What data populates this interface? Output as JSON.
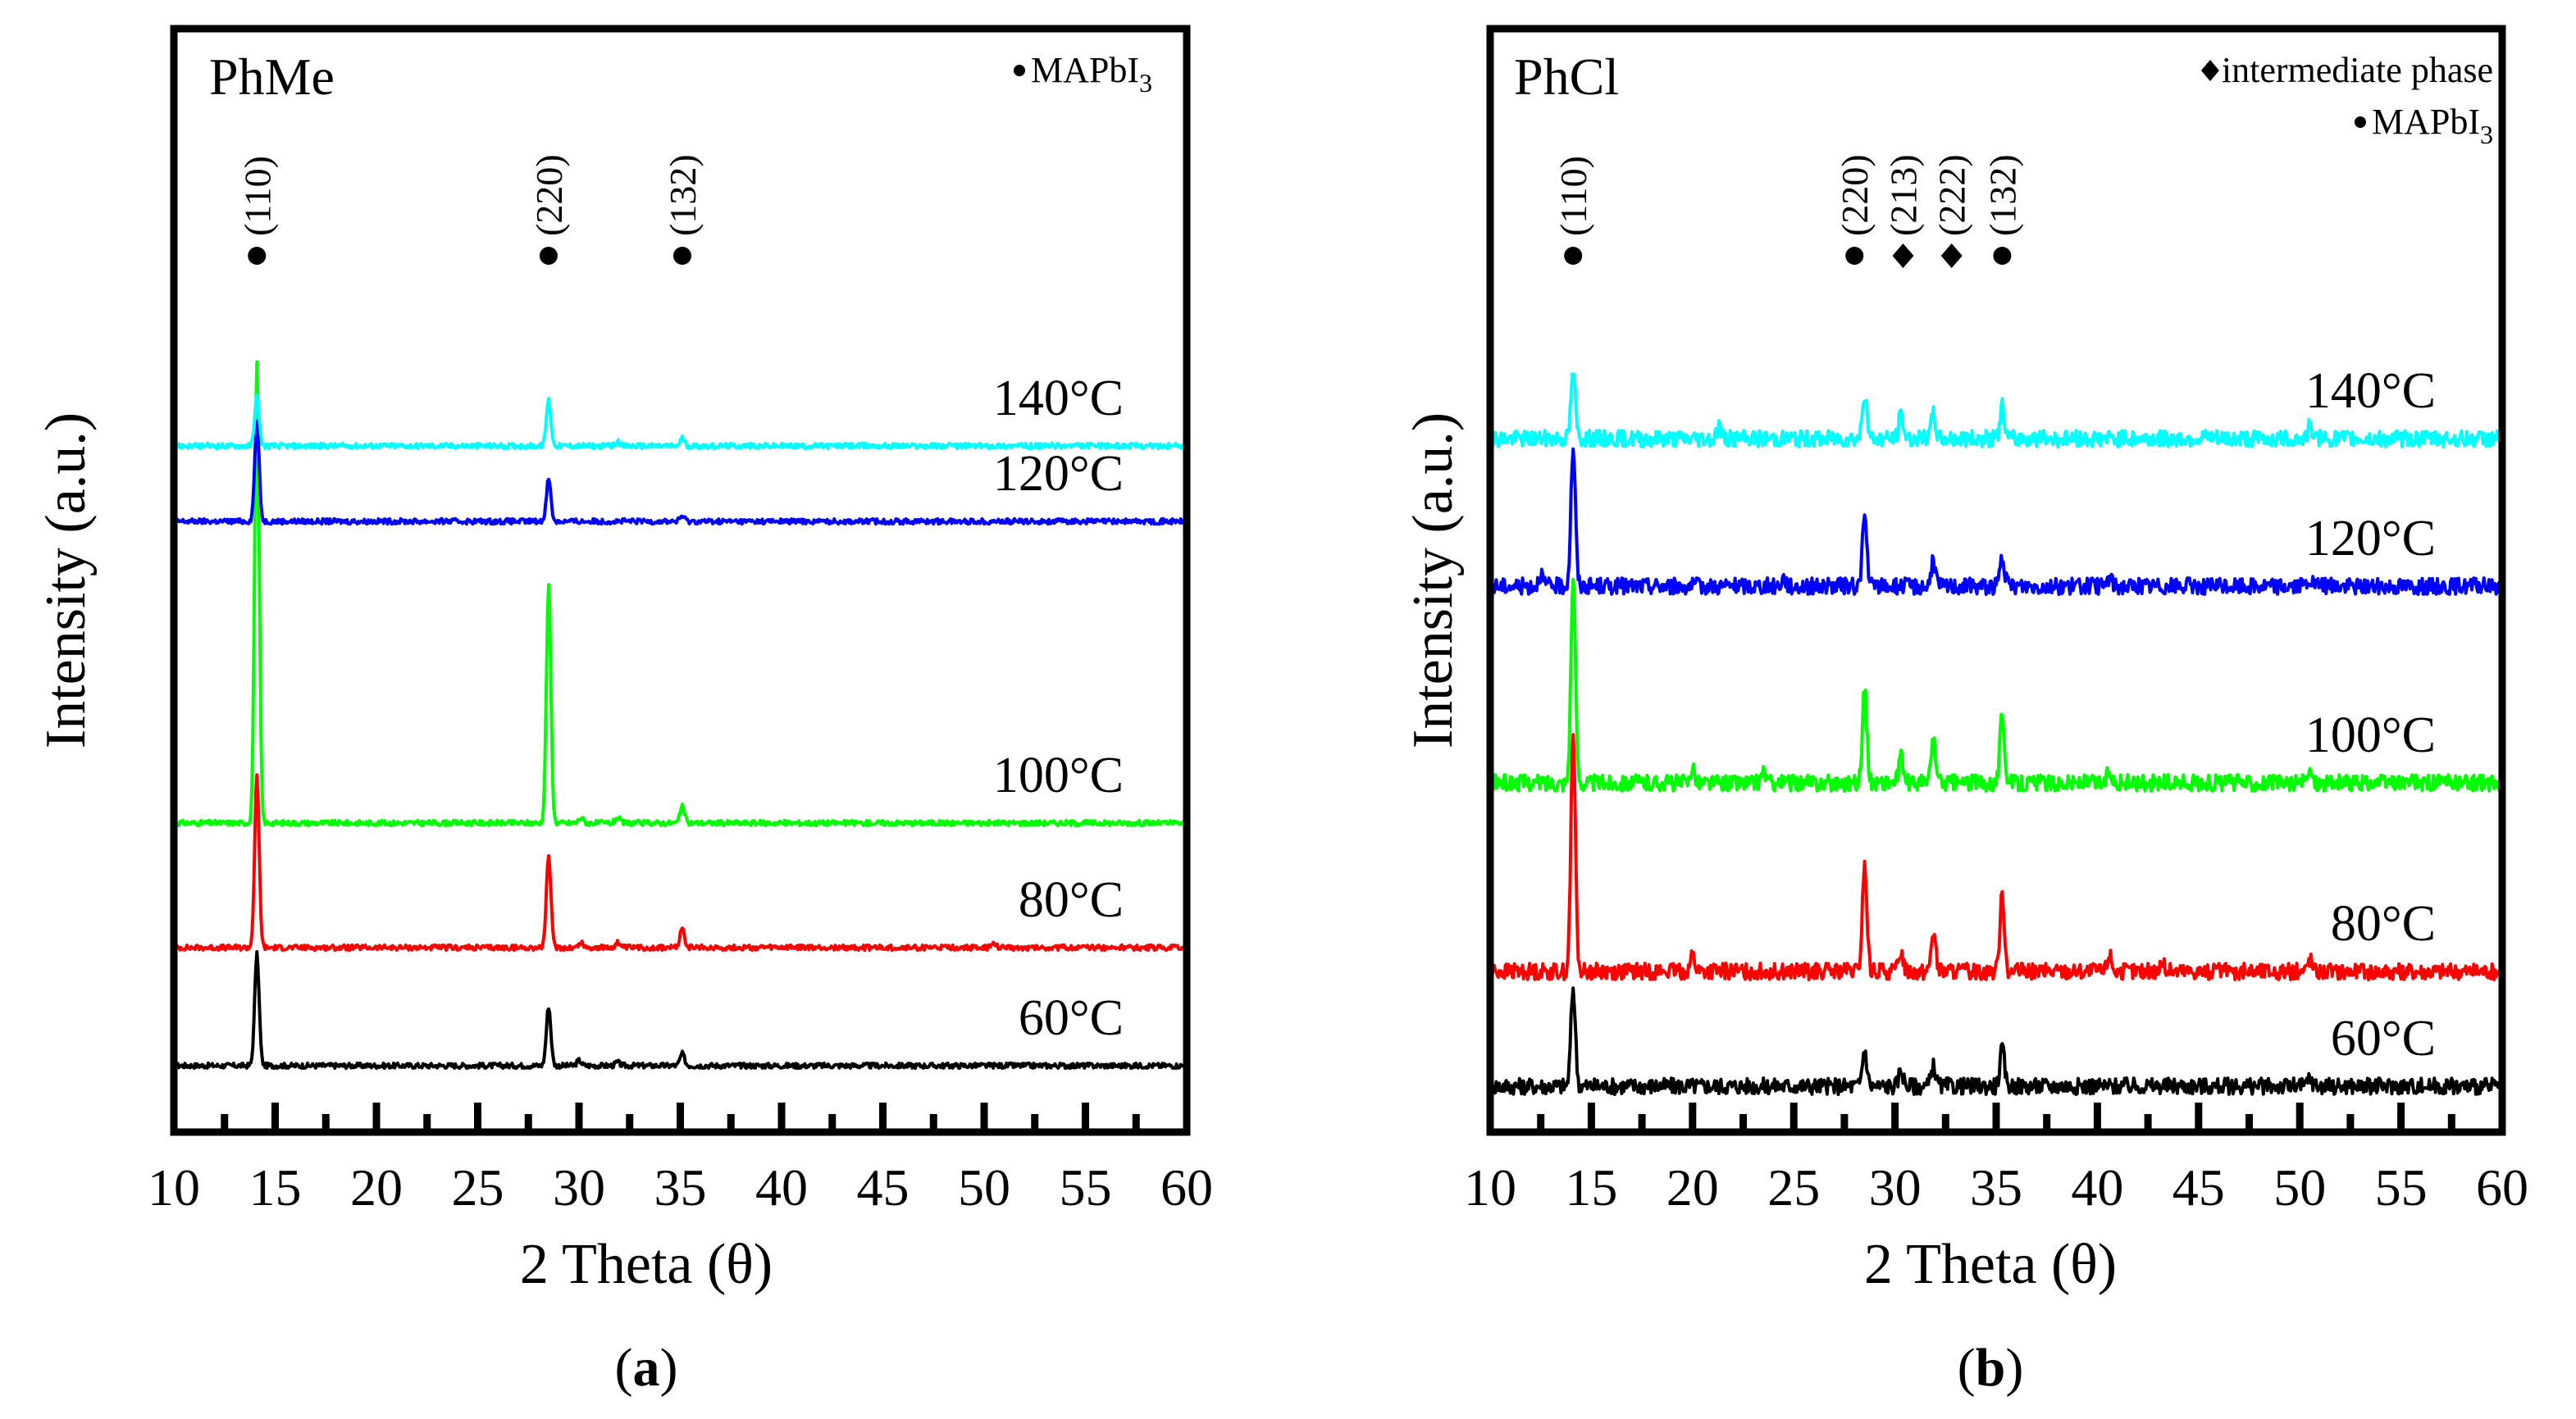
{
  "chart_data": [
    {
      "type": "line",
      "panel_label": "a",
      "title": "PhMe",
      "xlabel": "2 Theta (θ)",
      "ylabel": "Intensity (a.u.)",
      "xlim": [
        10,
        60
      ],
      "xticks": [
        10,
        15,
        20,
        25,
        30,
        35,
        40,
        45,
        50,
        55,
        60
      ],
      "xtick_labels": [
        "10",
        "15",
        "20",
        "25",
        "30",
        "35",
        "40",
        "45",
        "50",
        "55",
        "60"
      ],
      "legend": [
        {
          "marker": "circle",
          "text_main": "MAPbI",
          "text_sub": "3",
          "label": "MAPbI3"
        }
      ],
      "peak_labels": [
        {
          "x": 14.1,
          "label": "(110)",
          "marker": "circle"
        },
        {
          "x": 28.5,
          "label": "(220)",
          "marker": "circle"
        },
        {
          "x": 35.1,
          "label": "(132)",
          "marker": "circle"
        }
      ],
      "series": [
        {
          "name": "60°C",
          "color": "#000000",
          "baseline": 0.0,
          "noise": 0.04,
          "peaks": [
            [
              14.1,
              1.7
            ],
            [
              28.5,
              0.9
            ],
            [
              30.0,
              0.08
            ],
            [
              31.9,
              0.05
            ],
            [
              35.1,
              0.18
            ]
          ]
        },
        {
          "name": "80°C",
          "color": "#ff0000",
          "baseline": 1.8,
          "noise": 0.04,
          "peaks": [
            [
              14.1,
              2.6
            ],
            [
              28.5,
              1.4
            ],
            [
              30.1,
              0.08
            ],
            [
              31.9,
              0.08
            ],
            [
              35.1,
              0.3
            ],
            [
              50.5,
              0.06
            ]
          ]
        },
        {
          "name": "100°C",
          "color": "#00ff00",
          "baseline": 3.7,
          "noise": 0.04,
          "peaks": [
            [
              14.1,
              7.0
            ],
            [
              28.5,
              3.6
            ],
            [
              30.1,
              0.08
            ],
            [
              31.9,
              0.08
            ],
            [
              35.1,
              0.25
            ]
          ]
        },
        {
          "name": "120°C",
          "color": "#0000ff",
          "baseline": 8.3,
          "noise": 0.04,
          "peaks": [
            [
              14.1,
              1.5
            ],
            [
              28.5,
              0.65
            ],
            [
              35.1,
              0.08
            ]
          ]
        },
        {
          "name": "140°C",
          "color": "#00ffff",
          "baseline": 9.45,
          "noise": 0.04,
          "peaks": [
            [
              14.1,
              0.75
            ],
            [
              28.5,
              0.7
            ],
            [
              31.9,
              0.06
            ],
            [
              35.1,
              0.12
            ]
          ]
        }
      ]
    },
    {
      "type": "line",
      "panel_label": "b",
      "title": "PhCl",
      "xlabel": "2 Theta (θ)",
      "ylabel": "Intensity (a.u.)",
      "xlim": [
        10,
        60
      ],
      "xticks": [
        10,
        15,
        20,
        25,
        30,
        35,
        40,
        45,
        50,
        55,
        60
      ],
      "xtick_labels": [
        "10",
        "15",
        "20",
        "25",
        "30",
        "35",
        "40",
        "45",
        "50",
        "55",
        "60"
      ],
      "legend": [
        {
          "marker": "diamond",
          "text_main": "intermediate phase",
          "text_sub": "",
          "label": "intermediate phase"
        },
        {
          "marker": "circle",
          "text_main": "MAPbI",
          "text_sub": "3",
          "label": "MAPbI3"
        }
      ],
      "peak_labels": [
        {
          "x": 14.1,
          "label": "(110)",
          "marker": "circle"
        },
        {
          "x": 28.0,
          "label": "(220)",
          "marker": "circle"
        },
        {
          "x": 30.4,
          "label": "(213)",
          "marker": "diamond"
        },
        {
          "x": 32.8,
          "label": "(222)",
          "marker": "diamond"
        },
        {
          "x": 35.3,
          "label": "(132)",
          "marker": "circle"
        }
      ],
      "series": [
        {
          "name": "60°C",
          "color": "#000000",
          "baseline": 0.0,
          "noise": 0.1,
          "peaks": [
            [
              14.1,
              1.2
            ],
            [
              28.5,
              0.45
            ],
            [
              30.3,
              0.2
            ],
            [
              31.9,
              0.25
            ],
            [
              35.3,
              0.45
            ],
            [
              50.5,
              0.1
            ]
          ]
        },
        {
          "name": "80°C",
          "color": "#ff0000",
          "baseline": 1.4,
          "noise": 0.1,
          "peaks": [
            [
              14.1,
              2.9
            ],
            [
              20.0,
              0.2
            ],
            [
              28.5,
              1.3
            ],
            [
              30.3,
              0.25
            ],
            [
              31.9,
              0.5
            ],
            [
              35.3,
              0.95
            ],
            [
              40.6,
              0.2
            ],
            [
              43.2,
              0.1
            ],
            [
              50.5,
              0.15
            ]
          ]
        },
        {
          "name": "100°C",
          "color": "#00ff00",
          "baseline": 3.7,
          "noise": 0.1,
          "peaks": [
            [
              14.1,
              2.5
            ],
            [
              20.0,
              0.2
            ],
            [
              23.5,
              0.15
            ],
            [
              28.5,
              1.15
            ],
            [
              30.3,
              0.3
            ],
            [
              31.9,
              0.55
            ],
            [
              35.3,
              0.85
            ],
            [
              40.6,
              0.15
            ],
            [
              50.5,
              0.15
            ]
          ]
        },
        {
          "name": "120°C",
          "color": "#0000ff",
          "baseline": 6.1,
          "noise": 0.1,
          "peaks": [
            [
              12.5,
              0.15
            ],
            [
              14.1,
              1.7
            ],
            [
              24.5,
              0.1
            ],
            [
              28.5,
              0.85
            ],
            [
              31.9,
              0.3
            ],
            [
              35.3,
              0.35
            ],
            [
              40.6,
              0.1
            ],
            [
              50.5,
              0.08
            ]
          ]
        },
        {
          "name": "140°C",
          "color": "#00ffff",
          "baseline": 7.9,
          "noise": 0.1,
          "peaks": [
            [
              14.1,
              0.8
            ],
            [
              21.3,
              0.15
            ],
            [
              28.5,
              0.55
            ],
            [
              30.3,
              0.3
            ],
            [
              31.9,
              0.3
            ],
            [
              35.3,
              0.4
            ],
            [
              50.5,
              0.15
            ]
          ]
        }
      ]
    }
  ],
  "captions": [
    {
      "open": "(",
      "letter": "a",
      "close": ")"
    },
    {
      "open": "(",
      "letter": "b",
      "close": ")"
    }
  ]
}
